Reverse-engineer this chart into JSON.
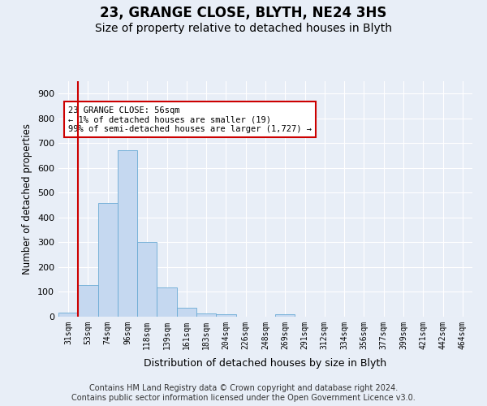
{
  "title1": "23, GRANGE CLOSE, BLYTH, NE24 3HS",
  "title2": "Size of property relative to detached houses in Blyth",
  "xlabel": "Distribution of detached houses by size in Blyth",
  "ylabel": "Number of detached properties",
  "footer1": "Contains HM Land Registry data © Crown copyright and database right 2024.",
  "footer2": "Contains public sector information licensed under the Open Government Licence v3.0.",
  "annotation_line1": "23 GRANGE CLOSE: 56sqm",
  "annotation_line2": "← 1% of detached houses are smaller (19)",
  "annotation_line3": "99% of semi-detached houses are larger (1,727) →",
  "bar_categories": [
    "31sqm",
    "53sqm",
    "74sqm",
    "96sqm",
    "118sqm",
    "139sqm",
    "161sqm",
    "183sqm",
    "204sqm",
    "226sqm",
    "248sqm",
    "269sqm",
    "291sqm",
    "312sqm",
    "334sqm",
    "356sqm",
    "377sqm",
    "399sqm",
    "421sqm",
    "442sqm",
    "464sqm"
  ],
  "bar_values": [
    15,
    128,
    460,
    670,
    300,
    118,
    35,
    13,
    10,
    0,
    0,
    10,
    0,
    0,
    0,
    0,
    0,
    0,
    0,
    0,
    0
  ],
  "bar_color": "#c5d8f0",
  "bar_edge_color": "#6aaad4",
  "vline_x": 0.5,
  "vline_color": "#cc0000",
  "ylim": [
    0,
    950
  ],
  "yticks": [
    0,
    100,
    200,
    300,
    400,
    500,
    600,
    700,
    800,
    900
  ],
  "background_color": "#e8eef7",
  "plot_background": "#e8eef7",
  "grid_color": "#ffffff",
  "annotation_box_color": "#ffffff",
  "annotation_box_edge": "#cc0000",
  "title1_fontsize": 12,
  "title2_fontsize": 10,
  "xlabel_fontsize": 9,
  "ylabel_fontsize": 8.5,
  "footer_fontsize": 7
}
